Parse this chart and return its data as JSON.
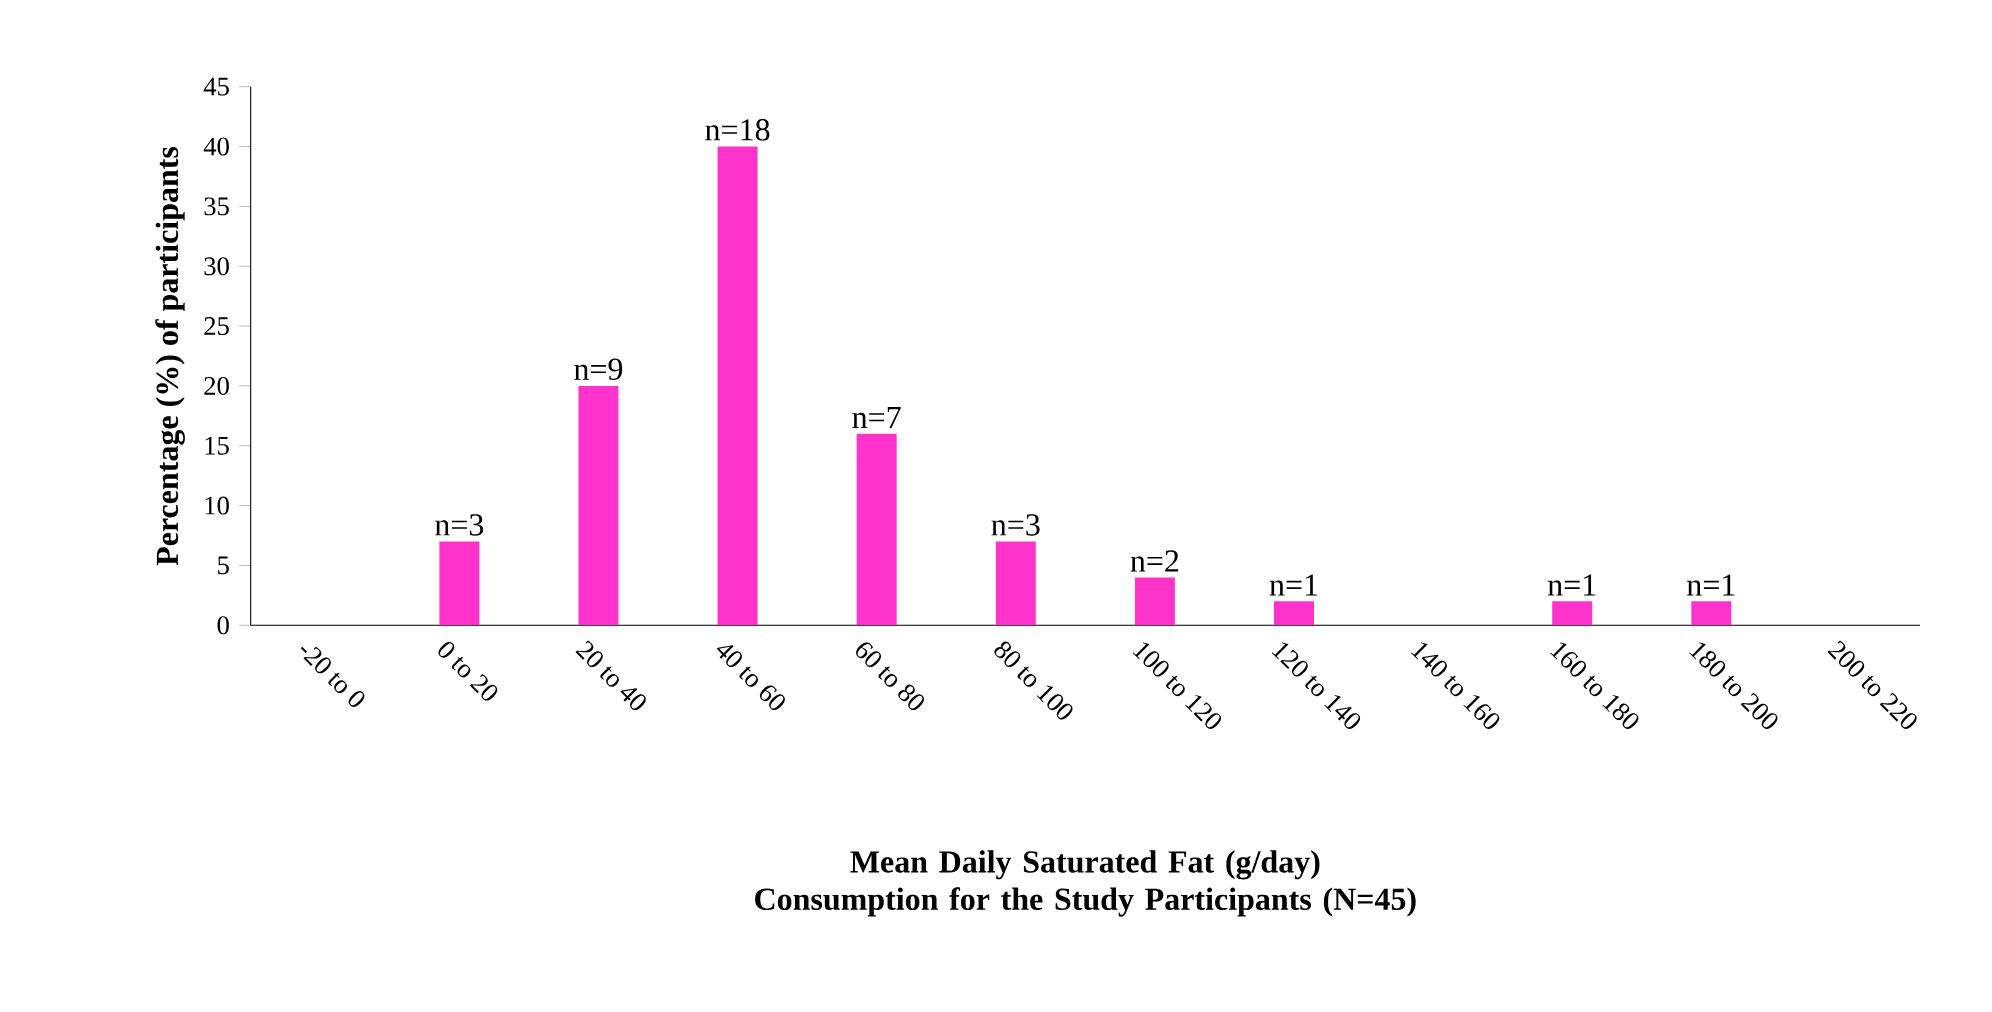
{
  "chart_data": {
    "type": "bar",
    "xlabel": "Mean Daily Saturated Fat (g/day) Consumption for the Study Participants (N=45)",
    "ylabel": "Percentage  (%) of participants",
    "categories": [
      "-20 to 0",
      "0 to 20",
      "20 to 40",
      "40 to 60",
      "60 to 80",
      "80 to 100",
      "100 to 120",
      "120 to 140",
      "140 to 160",
      "160 to 180",
      "180 to 200",
      "200 to 220"
    ],
    "values": [
      0,
      7,
      20,
      40,
      16,
      7,
      4,
      2,
      0,
      2,
      2,
      0
    ],
    "annotations": [
      {
        "text": "n=3",
        "x": "0 to 20",
        "y": 7
      },
      {
        "text": "n=9",
        "x": "20 to 40",
        "y": 20
      },
      {
        "text": "n=18",
        "x": "40 to 60",
        "y": 40
      },
      {
        "text": "n=7",
        "x": "60 to 80",
        "y": 16
      },
      {
        "text": "n=3",
        "x": "80 to 100",
        "y": 7
      },
      {
        "text": "n=2",
        "x": "100 to 120",
        "y": 4
      },
      {
        "text": "n=1",
        "x": "120 to 140",
        "y": 2
      },
      {
        "text": "n=1",
        "x": "160 to 180",
        "y": 2
      },
      {
        "text": "n=1",
        "x": "180 to 200",
        "y": 2
      }
    ],
    "color": "#ff33cc",
    "ylim": [
      0,
      45
    ],
    "yticks": [
      0,
      5,
      10,
      15,
      20,
      25,
      30,
      35,
      40,
      45
    ],
    "grid": false
  }
}
